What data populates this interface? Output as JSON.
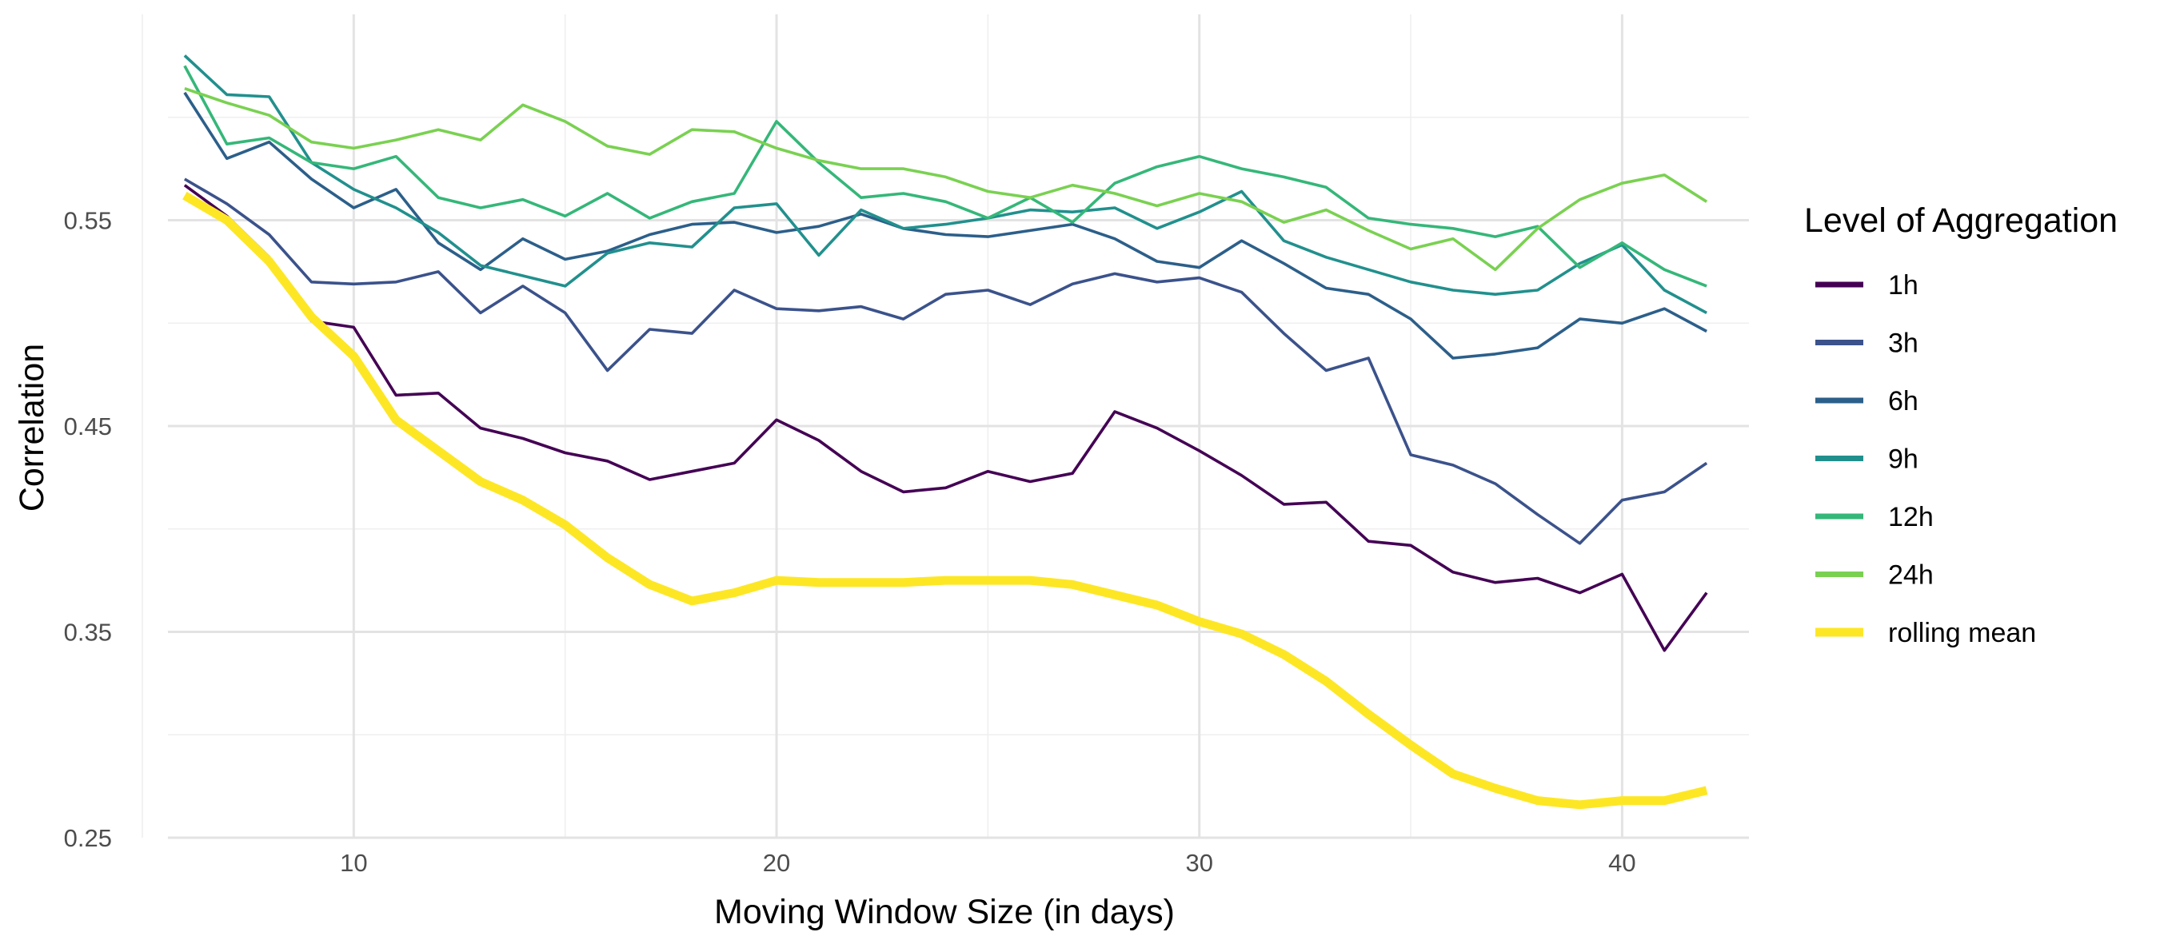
{
  "chart_data": {
    "type": "line",
    "xlabel": "Moving Window Size (in days)",
    "ylabel": "Correlation",
    "xlim": [
      5,
      43
    ],
    "ylim": [
      0.25,
      0.65
    ],
    "x_ticks": [
      10,
      20,
      30,
      40
    ],
    "y_ticks": [
      0.25,
      0.35,
      0.45,
      0.55
    ],
    "x_tick_labels": [
      "10",
      "20",
      "30",
      "40"
    ],
    "y_tick_labels": [
      "0.25",
      "0.35",
      "0.45",
      "0.55"
    ],
    "grid": true,
    "legend": {
      "title": "Level of Aggregation",
      "position": "right"
    },
    "x": [
      6,
      7,
      8,
      9,
      10,
      11,
      12,
      13,
      14,
      15,
      16,
      17,
      18,
      19,
      20,
      21,
      22,
      23,
      24,
      25,
      26,
      27,
      28,
      29,
      30,
      31,
      32,
      33,
      34,
      35,
      36,
      37,
      38,
      39,
      40,
      41,
      42
    ],
    "series": [
      {
        "name": "1h",
        "color": "#440154",
        "width": 1,
        "values": [
          0.567,
          0.552,
          0.532,
          0.501,
          0.498,
          0.465,
          0.466,
          0.449,
          0.444,
          0.437,
          0.433,
          0.424,
          0.428,
          0.432,
          0.453,
          0.443,
          0.428,
          0.418,
          0.42,
          0.428,
          0.423,
          0.427,
          0.457,
          0.449,
          0.438,
          0.426,
          0.412,
          0.413,
          0.394,
          0.392,
          0.379,
          0.374,
          0.376,
          0.369,
          0.378,
          0.341,
          0.369
        ]
      },
      {
        "name": "3h",
        "color": "#3b528b",
        "width": 1,
        "values": [
          0.57,
          0.558,
          0.543,
          0.52,
          0.519,
          0.52,
          0.525,
          0.505,
          0.518,
          0.505,
          0.477,
          0.497,
          0.495,
          0.516,
          0.507,
          0.506,
          0.508,
          0.502,
          0.514,
          0.516,
          0.509,
          0.519,
          0.524,
          0.52,
          0.522,
          0.515,
          0.495,
          0.477,
          0.483,
          0.436,
          0.431,
          0.422,
          0.407,
          0.393,
          0.414,
          0.418,
          0.432
        ]
      },
      {
        "name": "6h",
        "color": "#2c5f8a",
        "width": 1,
        "values": [
          0.612,
          0.58,
          0.588,
          0.57,
          0.556,
          0.565,
          0.539,
          0.526,
          0.541,
          0.531,
          0.535,
          0.543,
          0.548,
          0.549,
          0.544,
          0.547,
          0.553,
          0.546,
          0.543,
          0.542,
          0.545,
          0.548,
          0.541,
          0.53,
          0.527,
          0.54,
          0.529,
          0.517,
          0.514,
          0.502,
          0.483,
          0.485,
          0.488,
          0.502,
          0.5,
          0.507,
          0.496
        ]
      },
      {
        "name": "9h",
        "color": "#21908d",
        "width": 1,
        "values": [
          0.63,
          0.611,
          0.61,
          0.578,
          0.565,
          0.556,
          0.544,
          0.528,
          0.523,
          0.518,
          0.534,
          0.539,
          0.537,
          0.556,
          0.558,
          0.533,
          0.555,
          0.546,
          0.548,
          0.551,
          0.555,
          0.554,
          0.556,
          0.546,
          0.554,
          0.564,
          0.54,
          0.532,
          0.526,
          0.52,
          0.516,
          0.514,
          0.516,
          0.529,
          0.538,
          0.516,
          0.505
        ]
      },
      {
        "name": "12h",
        "color": "#35b779",
        "width": 1,
        "values": [
          0.625,
          0.587,
          0.59,
          0.578,
          0.575,
          0.581,
          0.561,
          0.556,
          0.56,
          0.552,
          0.563,
          0.551,
          0.559,
          0.563,
          0.598,
          0.578,
          0.561,
          0.563,
          0.559,
          0.551,
          0.561,
          0.549,
          0.568,
          0.576,
          0.581,
          0.575,
          0.571,
          0.566,
          0.551,
          0.548,
          0.546,
          0.542,
          0.547,
          0.527,
          0.539,
          0.526,
          0.518
        ]
      },
      {
        "name": "24h",
        "color": "#7ad151",
        "width": 1,
        "values": [
          0.614,
          0.607,
          0.601,
          0.588,
          0.585,
          0.589,
          0.594,
          0.589,
          0.606,
          0.598,
          0.586,
          0.582,
          0.594,
          0.593,
          0.585,
          0.579,
          0.575,
          0.575,
          0.571,
          0.564,
          0.561,
          0.567,
          0.563,
          0.557,
          0.563,
          0.559,
          0.549,
          0.555,
          0.545,
          0.536,
          0.541,
          0.526,
          0.546,
          0.56,
          0.568,
          0.572,
          0.559
        ]
      },
      {
        "name": "rolling mean",
        "color": "#fde725",
        "width": 2.5,
        "values": [
          0.562,
          0.55,
          0.53,
          0.503,
          0.484,
          0.453,
          0.438,
          0.423,
          0.414,
          0.402,
          0.386,
          0.373,
          0.365,
          0.369,
          0.375,
          0.374,
          0.374,
          0.374,
          0.375,
          0.375,
          0.375,
          0.373,
          0.368,
          0.363,
          0.355,
          0.349,
          0.339,
          0.326,
          0.31,
          0.295,
          0.281,
          0.274,
          0.268,
          0.266,
          0.268,
          0.268,
          0.273
        ]
      }
    ]
  }
}
